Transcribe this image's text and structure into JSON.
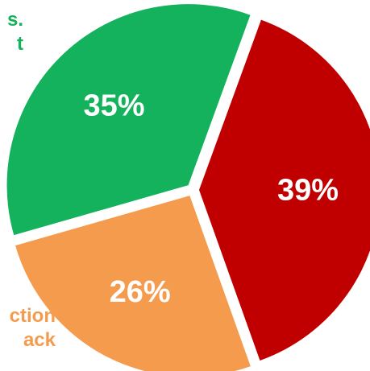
{
  "chart_data": {
    "type": "pie",
    "title": "",
    "series": [
      {
        "slices": [
          {
            "label": "39%",
            "value": 39,
            "color": "#c00000"
          },
          {
            "label": "26%",
            "value": 26,
            "color": "#f59b4d"
          },
          {
            "label": "35%",
            "value": 35,
            "color": "#14b25c"
          }
        ]
      }
    ],
    "legend_fragments": [
      {
        "lines": [
          "s.",
          "t"
        ],
        "color": "#14b25c"
      },
      {
        "lines": [
          "ction",
          "ack"
        ],
        "color": "#f59b4d"
      }
    ],
    "start_angle_deg": 20,
    "direction": "clockwise",
    "exploded": true
  }
}
